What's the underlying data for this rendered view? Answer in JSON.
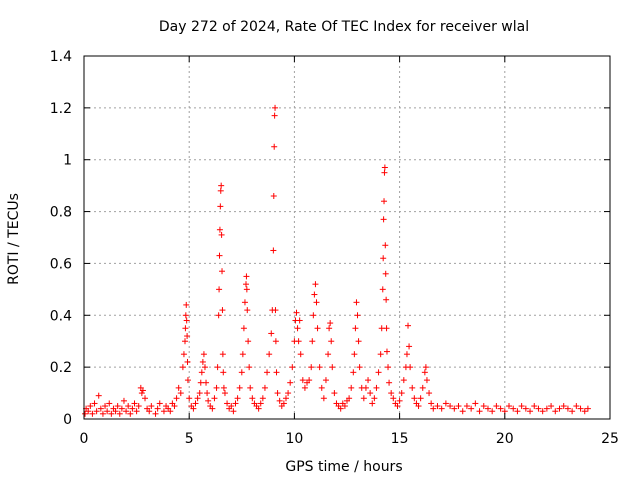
{
  "chart_data": {
    "type": "scatter",
    "title": "Day 272 of 2024, Rate Of TEC Index for receiver wlal",
    "xlabel": "GPS time / hours",
    "ylabel": "ROTI / TECUs",
    "xlim": [
      0,
      25
    ],
    "ylim": [
      0,
      1.4
    ],
    "xticks": [
      0,
      5,
      10,
      15,
      20,
      25
    ],
    "yticks": [
      0,
      0.2,
      0.4,
      0.6,
      0.8,
      1,
      1.2,
      1.4
    ],
    "xtick_labels": [
      "0",
      "5",
      "10",
      "15",
      "20",
      "25"
    ],
    "ytick_labels": [
      "0",
      "0.2",
      "0.4",
      "0.6",
      "0.8",
      "1",
      "1.2",
      "1.4"
    ],
    "grid": true,
    "marker": "+",
    "color": "#ff0000",
    "series": [
      {
        "name": "ROTI",
        "points": [
          [
            0.05,
            0.02
          ],
          [
            0.1,
            0.04
          ],
          [
            0.2,
            0.03
          ],
          [
            0.3,
            0.05
          ],
          [
            0.4,
            0.02
          ],
          [
            0.5,
            0.06
          ],
          [
            0.6,
            0.03
          ],
          [
            0.7,
            0.09
          ],
          [
            0.8,
            0.04
          ],
          [
            0.9,
            0.02
          ],
          [
            1.0,
            0.05
          ],
          [
            1.1,
            0.03
          ],
          [
            1.2,
            0.06
          ],
          [
            1.3,
            0.02
          ],
          [
            1.4,
            0.04
          ],
          [
            1.5,
            0.03
          ],
          [
            1.6,
            0.05
          ],
          [
            1.7,
            0.02
          ],
          [
            1.8,
            0.04
          ],
          [
            1.9,
            0.07
          ],
          [
            2.0,
            0.03
          ],
          [
            2.1,
            0.05
          ],
          [
            2.2,
            0.02
          ],
          [
            2.3,
            0.04
          ],
          [
            2.4,
            0.06
          ],
          [
            2.5,
            0.03
          ],
          [
            2.6,
            0.05
          ],
          [
            2.7,
            0.12
          ],
          [
            2.75,
            0.1
          ],
          [
            2.8,
            0.11
          ],
          [
            2.9,
            0.08
          ],
          [
            3.0,
            0.04
          ],
          [
            3.1,
            0.03
          ],
          [
            3.2,
            0.05
          ],
          [
            3.4,
            0.02
          ],
          [
            3.5,
            0.04
          ],
          [
            3.6,
            0.06
          ],
          [
            3.8,
            0.03
          ],
          [
            3.9,
            0.05
          ],
          [
            4.0,
            0.04
          ],
          [
            4.1,
            0.03
          ],
          [
            4.2,
            0.06
          ],
          [
            4.3,
            0.05
          ],
          [
            4.4,
            0.08
          ],
          [
            4.5,
            0.12
          ],
          [
            4.6,
            0.1
          ],
          [
            4.7,
            0.2
          ],
          [
            4.75,
            0.25
          ],
          [
            4.8,
            0.3
          ],
          [
            4.82,
            0.35
          ],
          [
            4.84,
            0.4
          ],
          [
            4.86,
            0.44
          ],
          [
            4.88,
            0.38
          ],
          [
            4.9,
            0.32
          ],
          [
            4.92,
            0.22
          ],
          [
            4.94,
            0.15
          ],
          [
            5.0,
            0.08
          ],
          [
            5.1,
            0.05
          ],
          [
            5.2,
            0.04
          ],
          [
            5.3,
            0.06
          ],
          [
            5.4,
            0.08
          ],
          [
            5.5,
            0.1
          ],
          [
            5.55,
            0.14
          ],
          [
            5.6,
            0.18
          ],
          [
            5.65,
            0.22
          ],
          [
            5.7,
            0.25
          ],
          [
            5.75,
            0.2
          ],
          [
            5.8,
            0.14
          ],
          [
            5.85,
            0.1
          ],
          [
            5.9,
            0.07
          ],
          [
            6.0,
            0.05
          ],
          [
            6.1,
            0.04
          ],
          [
            6.2,
            0.08
          ],
          [
            6.3,
            0.12
          ],
          [
            6.35,
            0.2
          ],
          [
            6.4,
            0.4
          ],
          [
            6.42,
            0.5
          ],
          [
            6.44,
            0.63
          ],
          [
            6.46,
            0.73
          ],
          [
            6.48,
            0.82
          ],
          [
            6.5,
            0.88
          ],
          [
            6.52,
            0.9
          ],
          [
            6.54,
            0.71
          ],
          [
            6.56,
            0.57
          ],
          [
            6.58,
            0.42
          ],
          [
            6.6,
            0.25
          ],
          [
            6.62,
            0.18
          ],
          [
            6.65,
            0.12
          ],
          [
            6.7,
            0.1
          ],
          [
            6.8,
            0.06
          ],
          [
            6.9,
            0.04
          ],
          [
            7.0,
            0.05
          ],
          [
            7.1,
            0.03
          ],
          [
            7.2,
            0.06
          ],
          [
            7.3,
            0.08
          ],
          [
            7.4,
            0.12
          ],
          [
            7.5,
            0.18
          ],
          [
            7.55,
            0.25
          ],
          [
            7.6,
            0.35
          ],
          [
            7.65,
            0.45
          ],
          [
            7.7,
            0.52
          ],
          [
            7.72,
            0.55
          ],
          [
            7.74,
            0.5
          ],
          [
            7.76,
            0.42
          ],
          [
            7.8,
            0.3
          ],
          [
            7.85,
            0.2
          ],
          [
            7.9,
            0.12
          ],
          [
            8.0,
            0.08
          ],
          [
            8.1,
            0.06
          ],
          [
            8.2,
            0.05
          ],
          [
            8.3,
            0.04
          ],
          [
            8.4,
            0.06
          ],
          [
            8.5,
            0.08
          ],
          [
            8.6,
            0.12
          ],
          [
            8.7,
            0.18
          ],
          [
            8.8,
            0.25
          ],
          [
            8.9,
            0.33
          ],
          [
            8.95,
            0.42
          ],
          [
            9.0,
            0.65
          ],
          [
            9.02,
            0.86
          ],
          [
            9.04,
            1.05
          ],
          [
            9.06,
            1.17
          ],
          [
            9.08,
            1.2
          ],
          [
            9.1,
            0.42
          ],
          [
            9.12,
            0.3
          ],
          [
            9.15,
            0.18
          ],
          [
            9.2,
            0.1
          ],
          [
            9.3,
            0.07
          ],
          [
            9.4,
            0.05
          ],
          [
            9.5,
            0.06
          ],
          [
            9.6,
            0.08
          ],
          [
            9.7,
            0.1
          ],
          [
            9.8,
            0.14
          ],
          [
            9.9,
            0.2
          ],
          [
            10.0,
            0.3
          ],
          [
            10.05,
            0.38
          ],
          [
            10.1,
            0.41
          ],
          [
            10.15,
            0.35
          ],
          [
            10.2,
            0.3
          ],
          [
            10.25,
            0.38
          ],
          [
            10.3,
            0.25
          ],
          [
            10.4,
            0.15
          ],
          [
            10.5,
            0.12
          ],
          [
            10.6,
            0.14
          ],
          [
            10.7,
            0.15
          ],
          [
            10.8,
            0.2
          ],
          [
            10.85,
            0.3
          ],
          [
            10.9,
            0.4
          ],
          [
            10.95,
            0.48
          ],
          [
            11.0,
            0.52
          ],
          [
            11.05,
            0.45
          ],
          [
            11.1,
            0.35
          ],
          [
            11.2,
            0.2
          ],
          [
            11.3,
            0.12
          ],
          [
            11.4,
            0.08
          ],
          [
            11.5,
            0.15
          ],
          [
            11.6,
            0.25
          ],
          [
            11.65,
            0.35
          ],
          [
            11.7,
            0.37
          ],
          [
            11.75,
            0.3
          ],
          [
            11.8,
            0.2
          ],
          [
            11.9,
            0.1
          ],
          [
            12.0,
            0.06
          ],
          [
            12.1,
            0.05
          ],
          [
            12.2,
            0.04
          ],
          [
            12.3,
            0.06
          ],
          [
            12.4,
            0.05
          ],
          [
            12.5,
            0.07
          ],
          [
            12.6,
            0.08
          ],
          [
            12.7,
            0.12
          ],
          [
            12.8,
            0.18
          ],
          [
            12.85,
            0.25
          ],
          [
            12.9,
            0.35
          ],
          [
            12.95,
            0.45
          ],
          [
            13.0,
            0.4
          ],
          [
            13.05,
            0.3
          ],
          [
            13.1,
            0.2
          ],
          [
            13.2,
            0.12
          ],
          [
            13.3,
            0.08
          ],
          [
            13.4,
            0.12
          ],
          [
            13.5,
            0.15
          ],
          [
            13.6,
            0.1
          ],
          [
            13.7,
            0.06
          ],
          [
            13.8,
            0.08
          ],
          [
            13.9,
            0.12
          ],
          [
            14.0,
            0.18
          ],
          [
            14.1,
            0.25
          ],
          [
            14.15,
            0.35
          ],
          [
            14.2,
            0.5
          ],
          [
            14.22,
            0.62
          ],
          [
            14.24,
            0.77
          ],
          [
            14.26,
            0.84
          ],
          [
            14.28,
            0.95
          ],
          [
            14.3,
            0.97
          ],
          [
            14.32,
            0.67
          ],
          [
            14.34,
            0.56
          ],
          [
            14.36,
            0.46
          ],
          [
            14.38,
            0.35
          ],
          [
            14.4,
            0.26
          ],
          [
            14.45,
            0.2
          ],
          [
            14.5,
            0.14
          ],
          [
            14.6,
            0.1
          ],
          [
            14.7,
            0.08
          ],
          [
            14.8,
            0.06
          ],
          [
            14.9,
            0.05
          ],
          [
            15.0,
            0.07
          ],
          [
            15.1,
            0.1
          ],
          [
            15.2,
            0.15
          ],
          [
            15.3,
            0.2
          ],
          [
            15.35,
            0.25
          ],
          [
            15.4,
            0.36
          ],
          [
            15.45,
            0.28
          ],
          [
            15.5,
            0.2
          ],
          [
            15.6,
            0.12
          ],
          [
            15.7,
            0.08
          ],
          [
            15.8,
            0.06
          ],
          [
            15.9,
            0.05
          ],
          [
            16.0,
            0.08
          ],
          [
            16.1,
            0.12
          ],
          [
            16.2,
            0.18
          ],
          [
            16.25,
            0.2
          ],
          [
            16.3,
            0.15
          ],
          [
            16.4,
            0.1
          ],
          [
            16.5,
            0.06
          ],
          [
            16.6,
            0.04
          ],
          [
            16.8,
            0.05
          ],
          [
            17.0,
            0.04
          ],
          [
            17.2,
            0.06
          ],
          [
            17.4,
            0.05
          ],
          [
            17.6,
            0.04
          ],
          [
            17.8,
            0.05
          ],
          [
            18.0,
            0.03
          ],
          [
            18.2,
            0.05
          ],
          [
            18.4,
            0.04
          ],
          [
            18.6,
            0.06
          ],
          [
            18.8,
            0.03
          ],
          [
            19.0,
            0.05
          ],
          [
            19.2,
            0.04
          ],
          [
            19.4,
            0.03
          ],
          [
            19.6,
            0.05
          ],
          [
            19.8,
            0.04
          ],
          [
            20.0,
            0.03
          ],
          [
            20.2,
            0.05
          ],
          [
            20.4,
            0.04
          ],
          [
            20.6,
            0.03
          ],
          [
            20.8,
            0.05
          ],
          [
            21.0,
            0.04
          ],
          [
            21.2,
            0.03
          ],
          [
            21.4,
            0.05
          ],
          [
            21.6,
            0.04
          ],
          [
            21.8,
            0.03
          ],
          [
            22.0,
            0.04
          ],
          [
            22.2,
            0.05
          ],
          [
            22.4,
            0.03
          ],
          [
            22.6,
            0.04
          ],
          [
            22.8,
            0.05
          ],
          [
            23.0,
            0.04
          ],
          [
            23.2,
            0.03
          ],
          [
            23.4,
            0.05
          ],
          [
            23.6,
            0.04
          ],
          [
            23.8,
            0.03
          ],
          [
            23.95,
            0.04
          ]
        ]
      }
    ]
  }
}
